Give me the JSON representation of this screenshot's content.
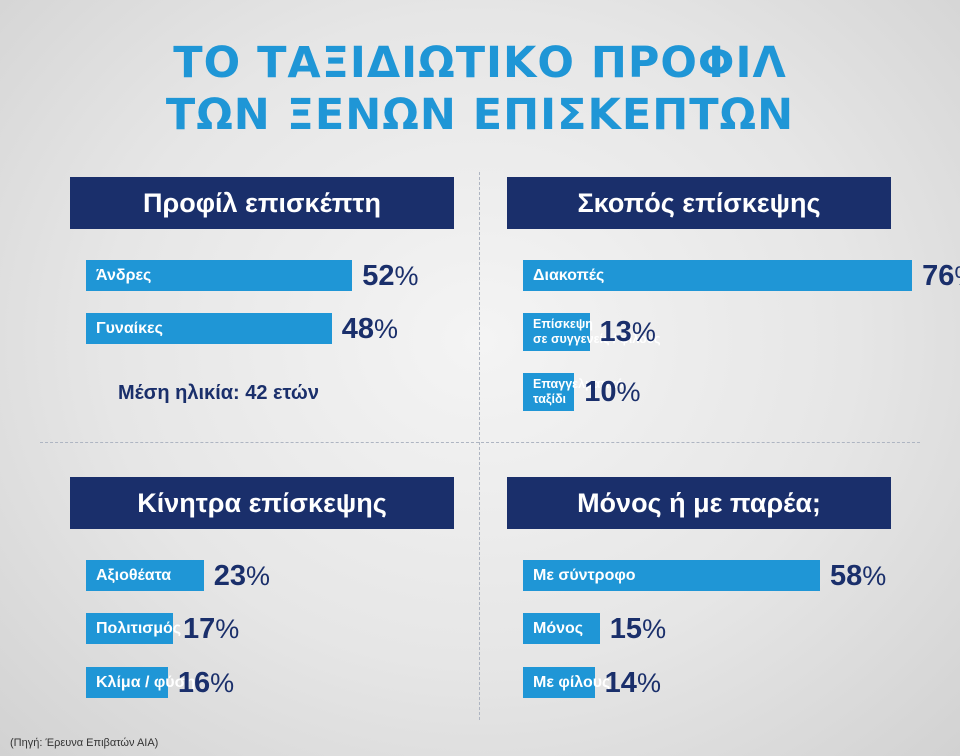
{
  "title_line1": "ΤΟ ΤΑΞΙΔΙΩΤΙΚΟ ΠΡΟΦΙΛ",
  "title_line2": "ΤΩΝ ΞΕΝΩΝ ΕΠΙΣΚΕΠΤΩΝ",
  "source": "(Πηγή: Έρευνα Επιβατών ΑΙΑ)",
  "colors": {
    "bar": "#1f96d6",
    "header": "#1a2f6b",
    "title": "#1f96d6",
    "value": "#1a2f6b"
  },
  "chart_data": [
    {
      "type": "bar",
      "title": "Προφίλ επισκέπτη",
      "categories": [
        "Άνδρες",
        "Γυναίκες"
      ],
      "values": [
        52,
        48
      ],
      "value_labels": [
        "52",
        "48"
      ],
      "note": "Μέση ηλικία: 42 ετών"
    },
    {
      "type": "bar",
      "title": "Σκοπός επίσκεψης",
      "categories": [
        "Διακοπές",
        "Επίσκεψη σε συγγενείς / φίλους",
        "Επαγγελματικό ταξίδι"
      ],
      "category_lines": [
        [
          "Διακοπές"
        ],
        [
          "Επίσκεψη",
          "σε συγγενείς / φίλους"
        ],
        [
          "Επαγγελματικό",
          "ταξίδι"
        ]
      ],
      "values": [
        76,
        13,
        10
      ],
      "value_labels": [
        "76",
        "13",
        "10"
      ]
    },
    {
      "type": "bar",
      "title": "Κίνητρα επίσκεψης",
      "categories": [
        "Αξιοθέατα",
        "Πολιτισμός",
        "Κλίμα / φύση"
      ],
      "values": [
        23,
        17,
        16
      ],
      "value_labels": [
        "23",
        "17",
        "16"
      ]
    },
    {
      "type": "bar",
      "title": "Μόνος ή με παρέα;",
      "categories": [
        "Με σύντροφο",
        "Μόνος",
        "Με φίλους"
      ],
      "values": [
        58,
        15,
        14
      ],
      "value_labels": [
        "58",
        "15",
        "14"
      ]
    }
  ]
}
